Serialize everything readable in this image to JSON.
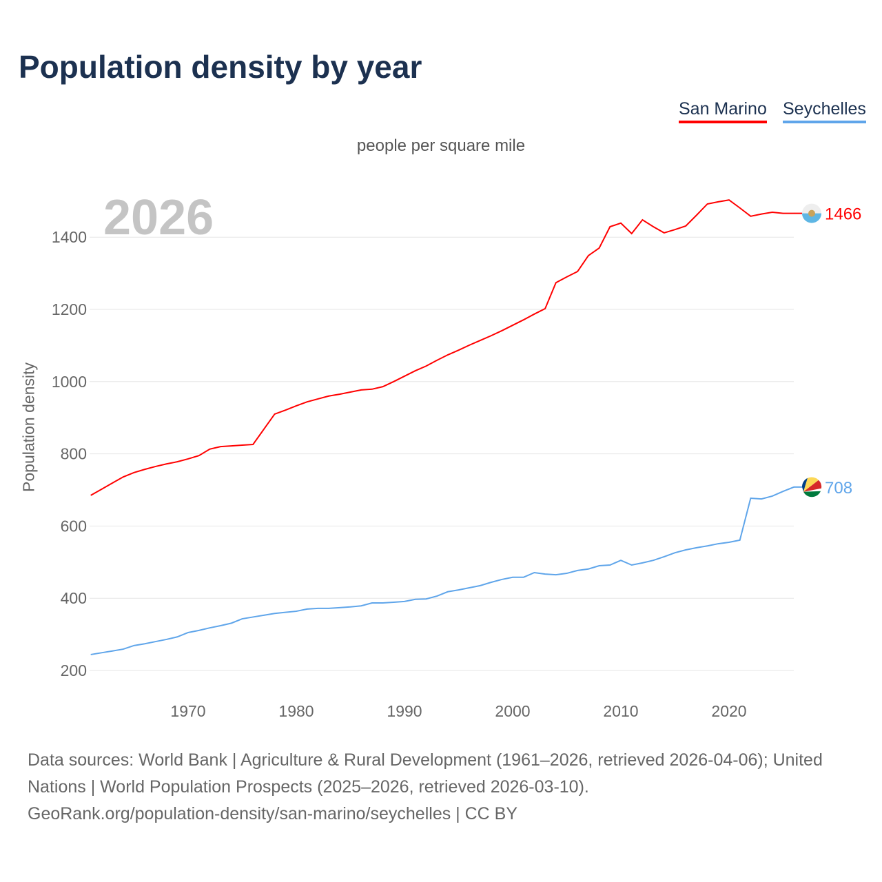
{
  "title": "Population density by year",
  "subtitle": "people per square mile",
  "big_year": "2026",
  "footer": {
    "line1": "Data sources: World Bank | Agriculture & Rural Development (1961–2026, retrieved 2026-04-06); United Nations | World Population Prospects (2025–2026, retrieved 2026-03-10).",
    "line2": "GeoRank.org/population-density/san-marino/seychelles | CC BY"
  },
  "chart_data": {
    "type": "line",
    "title": "Population density by year",
    "xlabel": "",
    "ylabel": "Population density",
    "xlim": [
      1961,
      2026
    ],
    "ylim": [
      200,
      1520
    ],
    "x_ticks": [
      1970,
      1980,
      1990,
      2000,
      2010,
      2020
    ],
    "y_ticks": [
      200,
      400,
      600,
      800,
      1000,
      1200,
      1400
    ],
    "grid": true,
    "legend_position": "top-right",
    "x": [
      1961,
      1962,
      1963,
      1964,
      1965,
      1966,
      1967,
      1968,
      1969,
      1970,
      1971,
      1972,
      1973,
      1974,
      1975,
      1976,
      1977,
      1978,
      1979,
      1980,
      1981,
      1982,
      1983,
      1984,
      1985,
      1986,
      1987,
      1988,
      1989,
      1990,
      1991,
      1992,
      1993,
      1994,
      1995,
      1996,
      1997,
      1998,
      1999,
      2000,
      2001,
      2002,
      2003,
      2004,
      2005,
      2006,
      2007,
      2008,
      2009,
      2010,
      2011,
      2012,
      2013,
      2014,
      2015,
      2016,
      2017,
      2018,
      2019,
      2020,
      2021,
      2022,
      2023,
      2024,
      2025,
      2026
    ],
    "series": [
      {
        "name": "San Marino",
        "color": "#ff0000",
        "end_label": "1466",
        "values": [
          685,
          702,
          719,
          736,
          748,
          757,
          765,
          772,
          778,
          786,
          795,
          813,
          820,
          822,
          824,
          826,
          868,
          910,
          921,
          933,
          944,
          952,
          960,
          965,
          971,
          977,
          979,
          986,
          1000,
          1015,
          1030,
          1043,
          1059,
          1074,
          1087,
          1101,
          1114,
          1127,
          1141,
          1156,
          1171,
          1187,
          1202,
          1274,
          1290,
          1305,
          1349,
          1370,
          1429,
          1439,
          1410,
          1448,
          1429,
          1412,
          1421,
          1431,
          1461,
          1492,
          1498,
          1503,
          1481,
          1458,
          1464,
          1469,
          1466,
          1466
        ]
      },
      {
        "name": "Seychelles",
        "color": "#5fa5ea",
        "end_label": "708",
        "values": [
          244,
          249,
          254,
          259,
          269,
          274,
          280,
          286,
          293,
          305,
          311,
          318,
          324,
          331,
          343,
          348,
          353,
          358,
          361,
          364,
          370,
          372,
          372,
          374,
          376,
          379,
          387,
          387,
          389,
          391,
          397,
          398,
          406,
          418,
          423,
          429,
          435,
          444,
          452,
          458,
          458,
          471,
          467,
          465,
          469,
          477,
          481,
          490,
          492,
          505,
          492,
          498,
          505,
          515,
          526,
          534,
          540,
          545,
          551,
          555,
          561,
          677,
          675,
          683,
          696,
          708
        ]
      }
    ]
  }
}
